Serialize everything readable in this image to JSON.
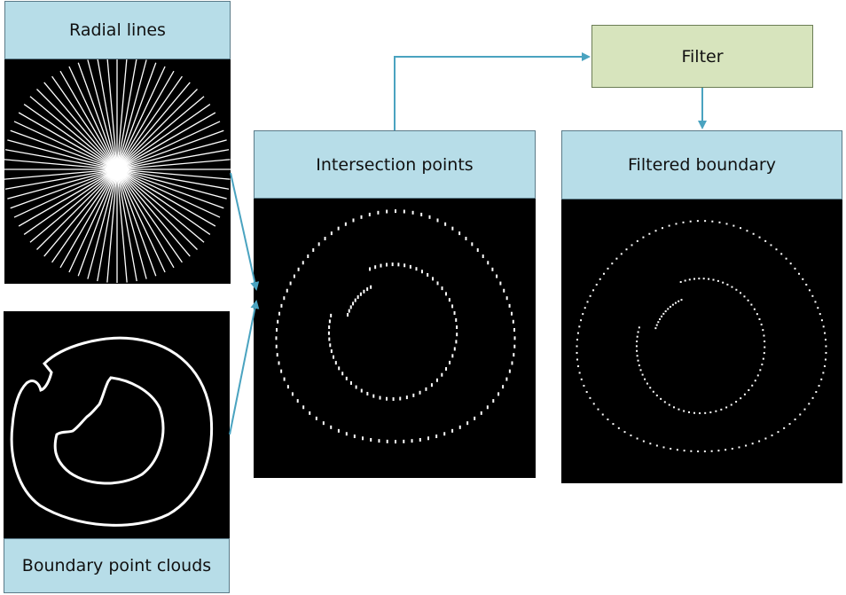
{
  "labels": {
    "radial_lines": "Radial lines",
    "boundary_point_clouds": "Boundary point clouds",
    "intersection_points": "Intersection points",
    "filter": "Filter",
    "filtered_boundary": "Filtered boundary"
  },
  "colors": {
    "label_fill": "#b7dde8",
    "filter_fill": "#d7e4bd",
    "arrow": "#4aa3c0",
    "image_bg": "#000000",
    "image_fg": "#ffffff"
  }
}
